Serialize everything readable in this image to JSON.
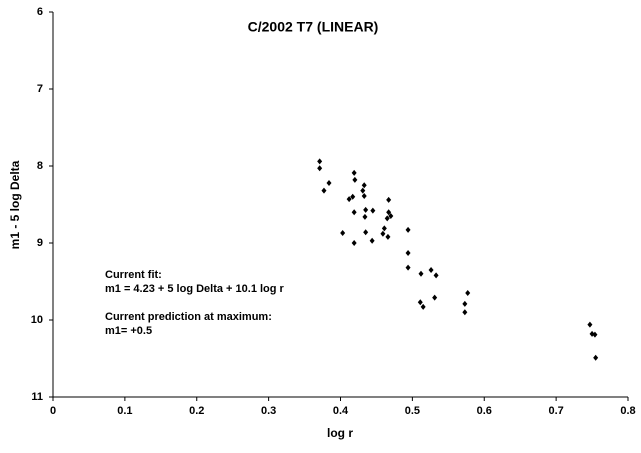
{
  "chart_data": {
    "type": "scatter",
    "title": "C/2002 T7 (LINEAR)",
    "x_label": "log r",
    "y_label": "m1 - 5 log Delta",
    "xlim": [
      0,
      0.8
    ],
    "xticks": [
      0,
      0.1,
      0.2,
      0.3,
      0.4,
      0.5,
      0.6,
      0.7,
      0.8
    ],
    "ylim": [
      6,
      11
    ],
    "yticks": [
      6,
      7,
      8,
      9,
      10,
      11
    ],
    "y_inverted": true,
    "grid": false,
    "annotations": [
      "Current fit:",
      "m1 = 4.23 + 5 log Delta + 10.1 log r",
      "Current prediction at maximum:",
      "m1= +0.5"
    ],
    "series": [
      {
        "color": "#000000",
        "x": [
          0.371,
          0.371,
          0.384,
          0.377,
          0.419,
          0.42,
          0.433,
          0.431,
          0.417,
          0.412,
          0.433,
          0.419,
          0.435,
          0.434,
          0.445,
          0.403,
          0.419,
          0.435,
          0.444,
          0.461,
          0.466,
          0.459,
          0.47,
          0.467,
          0.465,
          0.467,
          0.494,
          0.494,
          0.494,
          0.512,
          0.526,
          0.533,
          0.531,
          0.511,
          0.515,
          0.573,
          0.573,
          0.577,
          0.747,
          0.75,
          0.754,
          0.755
        ],
        "values": [
          7.94,
          8.03,
          8.22,
          8.32,
          8.09,
          8.18,
          8.25,
          8.32,
          8.4,
          8.43,
          8.39,
          8.6,
          8.57,
          8.66,
          8.58,
          8.87,
          9.0,
          8.86,
          8.97,
          8.81,
          8.92,
          8.88,
          8.65,
          8.44,
          8.68,
          8.6,
          8.83,
          9.13,
          9.32,
          9.4,
          9.35,
          9.42,
          9.71,
          9.77,
          9.83,
          9.79,
          9.9,
          9.65,
          10.06,
          10.18,
          10.19,
          10.49
        ]
      }
    ]
  }
}
